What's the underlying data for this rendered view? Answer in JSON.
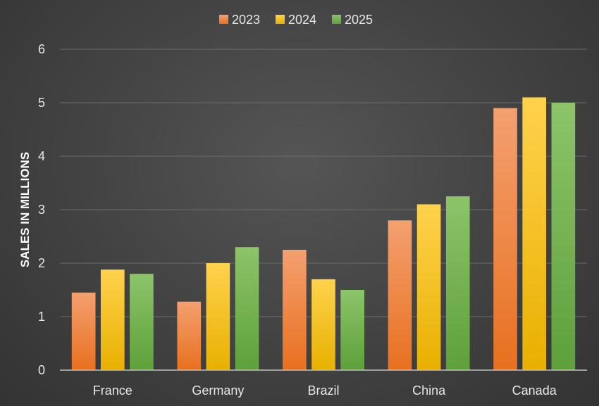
{
  "chart_data": {
    "type": "bar",
    "title": "",
    "xlabel": "",
    "ylabel": "SALES IN MILLIONS",
    "ylim": [
      0,
      6
    ],
    "yticks": [
      0,
      1,
      2,
      3,
      4,
      5,
      6
    ],
    "grid": true,
    "legend_position": "top-center",
    "categories": [
      "France",
      "Germany",
      "Brazil",
      "China",
      "Canada"
    ],
    "series": [
      {
        "name": "2023",
        "color": "#ED7D31",
        "values": [
          1.45,
          1.28,
          2.25,
          2.8,
          4.9
        ]
      },
      {
        "name": "2024",
        "color": "#FFC000",
        "values": [
          1.88,
          2.0,
          1.7,
          3.1,
          5.1
        ]
      },
      {
        "name": "2025",
        "color": "#70AD47",
        "values": [
          1.8,
          2.3,
          1.5,
          3.25,
          5.0
        ]
      }
    ]
  }
}
